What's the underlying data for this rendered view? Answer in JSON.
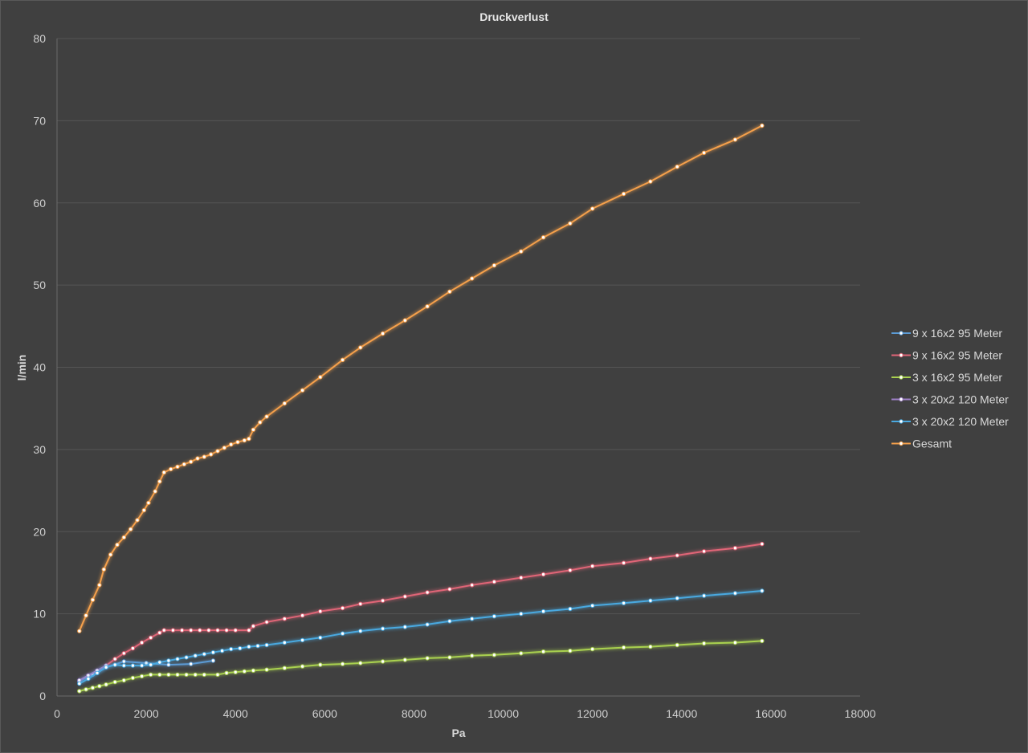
{
  "chart_data": {
    "type": "line",
    "title": "Druckverlust",
    "xlabel": "Pa",
    "ylabel": "l/min",
    "xlim": [
      0,
      18000
    ],
    "ylim": [
      0,
      80
    ],
    "x_ticks": [
      0,
      2000,
      4000,
      6000,
      8000,
      10000,
      12000,
      14000,
      16000,
      18000
    ],
    "y_ticks": [
      0,
      10,
      20,
      30,
      40,
      50,
      60,
      70,
      80
    ],
    "grid": true,
    "legend_position": "right",
    "colors": {
      "background": "#404040",
      "plot_border": "#595959",
      "gridline": "#555555",
      "tick_label": "#cfcfcf"
    },
    "series": [
      {
        "name": "9 x 16x2 95 Meter",
        "color": "#5b9bd5",
        "points": [
          [
            500,
            1.8
          ],
          [
            800,
            2.6
          ],
          [
            1100,
            3.5
          ],
          [
            1500,
            4.2
          ],
          [
            2000,
            4.0
          ],
          [
            2500,
            3.8
          ],
          [
            3000,
            3.9
          ],
          [
            3500,
            4.3
          ]
        ]
      },
      {
        "name": "9 x 16x2 95 Meter",
        "color": "#e06577",
        "points": [
          [
            1100,
            3.7
          ],
          [
            1300,
            4.5
          ],
          [
            1500,
            5.2
          ],
          [
            1700,
            5.8
          ],
          [
            1900,
            6.5
          ],
          [
            2100,
            7.1
          ],
          [
            2300,
            7.7
          ],
          [
            2400,
            8.0
          ],
          [
            2600,
            8.0
          ],
          [
            2800,
            8.0
          ],
          [
            3000,
            8.0
          ],
          [
            3200,
            8.0
          ],
          [
            3400,
            8.0
          ],
          [
            3600,
            8.0
          ],
          [
            3800,
            8.0
          ],
          [
            4000,
            8.0
          ],
          [
            4300,
            8.0
          ],
          [
            4400,
            8.5
          ],
          [
            4700,
            9.0
          ],
          [
            5100,
            9.4
          ],
          [
            5500,
            9.8
          ],
          [
            5900,
            10.3
          ],
          [
            6400,
            10.7
          ],
          [
            6800,
            11.2
          ],
          [
            7300,
            11.6
          ],
          [
            7800,
            12.1
          ],
          [
            8300,
            12.6
          ],
          [
            8800,
            13.0
          ],
          [
            9300,
            13.5
          ],
          [
            9800,
            13.9
          ],
          [
            10400,
            14.4
          ],
          [
            10900,
            14.8
          ],
          [
            11500,
            15.3
          ],
          [
            12000,
            15.8
          ],
          [
            12700,
            16.2
          ],
          [
            13300,
            16.7
          ],
          [
            13900,
            17.1
          ],
          [
            14500,
            17.6
          ],
          [
            15200,
            18.0
          ],
          [
            15800,
            18.5
          ]
        ]
      },
      {
        "name": "3 x 16x2 95 Meter",
        "color": "#a9d14f",
        "points": [
          [
            500,
            0.6
          ],
          [
            650,
            0.8
          ],
          [
            800,
            1.0
          ],
          [
            950,
            1.2
          ],
          [
            1100,
            1.4
          ],
          [
            1300,
            1.7
          ],
          [
            1500,
            1.9
          ],
          [
            1700,
            2.2
          ],
          [
            1900,
            2.4
          ],
          [
            2100,
            2.6
          ],
          [
            2300,
            2.6
          ],
          [
            2500,
            2.6
          ],
          [
            2700,
            2.6
          ],
          [
            2900,
            2.6
          ],
          [
            3100,
            2.6
          ],
          [
            3300,
            2.6
          ],
          [
            3600,
            2.6
          ],
          [
            3800,
            2.8
          ],
          [
            4000,
            2.9
          ],
          [
            4200,
            3.0
          ],
          [
            4400,
            3.1
          ],
          [
            4700,
            3.2
          ],
          [
            5100,
            3.4
          ],
          [
            5500,
            3.6
          ],
          [
            5900,
            3.8
          ],
          [
            6400,
            3.9
          ],
          [
            6800,
            4.0
          ],
          [
            7300,
            4.2
          ],
          [
            7800,
            4.4
          ],
          [
            8300,
            4.6
          ],
          [
            8800,
            4.7
          ],
          [
            9300,
            4.9
          ],
          [
            9800,
            5.0
          ],
          [
            10400,
            5.2
          ],
          [
            10900,
            5.4
          ],
          [
            11500,
            5.5
          ],
          [
            12000,
            5.7
          ],
          [
            12700,
            5.9
          ],
          [
            13300,
            6.0
          ],
          [
            13900,
            6.2
          ],
          [
            14500,
            6.4
          ],
          [
            15200,
            6.5
          ],
          [
            15800,
            6.7
          ]
        ]
      },
      {
        "name": "3 x 20x2 120 Meter",
        "color": "#9e80c7",
        "points": [
          [
            500,
            1.9
          ],
          [
            700,
            2.5
          ],
          [
            900,
            3.1
          ],
          [
            1100,
            3.7
          ]
        ]
      },
      {
        "name": "3 x 20x2 120 Meter",
        "color": "#4aa9e0",
        "points": [
          [
            500,
            1.5
          ],
          [
            700,
            2.1
          ],
          [
            900,
            2.8
          ],
          [
            1100,
            3.5
          ],
          [
            1300,
            3.8
          ],
          [
            1500,
            3.7
          ],
          [
            1700,
            3.7
          ],
          [
            1900,
            3.7
          ],
          [
            2100,
            3.8
          ],
          [
            2300,
            4.1
          ],
          [
            2500,
            4.3
          ],
          [
            2700,
            4.5
          ],
          [
            2900,
            4.7
          ],
          [
            3100,
            4.9
          ],
          [
            3300,
            5.1
          ],
          [
            3500,
            5.3
          ],
          [
            3700,
            5.5
          ],
          [
            3900,
            5.7
          ],
          [
            4100,
            5.8
          ],
          [
            4300,
            6.0
          ],
          [
            4500,
            6.1
          ],
          [
            4700,
            6.2
          ],
          [
            5100,
            6.5
          ],
          [
            5500,
            6.8
          ],
          [
            5900,
            7.1
          ],
          [
            6400,
            7.6
          ],
          [
            6800,
            7.9
          ],
          [
            7300,
            8.2
          ],
          [
            7800,
            8.4
          ],
          [
            8300,
            8.7
          ],
          [
            8800,
            9.1
          ],
          [
            9300,
            9.4
          ],
          [
            9800,
            9.7
          ],
          [
            10400,
            10.0
          ],
          [
            10900,
            10.3
          ],
          [
            11500,
            10.6
          ],
          [
            12000,
            11.0
          ],
          [
            12700,
            11.3
          ],
          [
            13300,
            11.6
          ],
          [
            13900,
            11.9
          ],
          [
            14500,
            12.2
          ],
          [
            15200,
            12.5
          ],
          [
            15800,
            12.8
          ]
        ]
      },
      {
        "name": "Gesamt",
        "color": "#f5a04b",
        "points": [
          [
            500,
            7.9
          ],
          [
            650,
            9.8
          ],
          [
            800,
            11.7
          ],
          [
            950,
            13.5
          ],
          [
            1050,
            15.4
          ],
          [
            1200,
            17.2
          ],
          [
            1350,
            18.4
          ],
          [
            1500,
            19.3
          ],
          [
            1650,
            20.3
          ],
          [
            1800,
            21.4
          ],
          [
            1950,
            22.6
          ],
          [
            2050,
            23.5
          ],
          [
            2200,
            24.9
          ],
          [
            2300,
            26.1
          ],
          [
            2400,
            27.2
          ],
          [
            2550,
            27.6
          ],
          [
            2700,
            27.9
          ],
          [
            2850,
            28.2
          ],
          [
            3000,
            28.5
          ],
          [
            3150,
            28.9
          ],
          [
            3300,
            29.1
          ],
          [
            3450,
            29.4
          ],
          [
            3600,
            29.8
          ],
          [
            3750,
            30.2
          ],
          [
            3900,
            30.6
          ],
          [
            4050,
            30.9
          ],
          [
            4200,
            31.1
          ],
          [
            4300,
            31.3
          ],
          [
            4400,
            32.4
          ],
          [
            4550,
            33.3
          ],
          [
            4700,
            34.0
          ],
          [
            5100,
            35.6
          ],
          [
            5500,
            37.2
          ],
          [
            5900,
            38.8
          ],
          [
            6400,
            40.9
          ],
          [
            6800,
            42.4
          ],
          [
            7300,
            44.1
          ],
          [
            7800,
            45.7
          ],
          [
            8300,
            47.4
          ],
          [
            8800,
            49.2
          ],
          [
            9300,
            50.8
          ],
          [
            9800,
            52.4
          ],
          [
            10400,
            54.1
          ],
          [
            10900,
            55.8
          ],
          [
            11500,
            57.5
          ],
          [
            12000,
            59.3
          ],
          [
            12700,
            61.1
          ],
          [
            13300,
            62.6
          ],
          [
            13900,
            64.4
          ],
          [
            14500,
            66.1
          ],
          [
            15200,
            67.7
          ],
          [
            15800,
            69.4
          ]
        ]
      }
    ]
  }
}
